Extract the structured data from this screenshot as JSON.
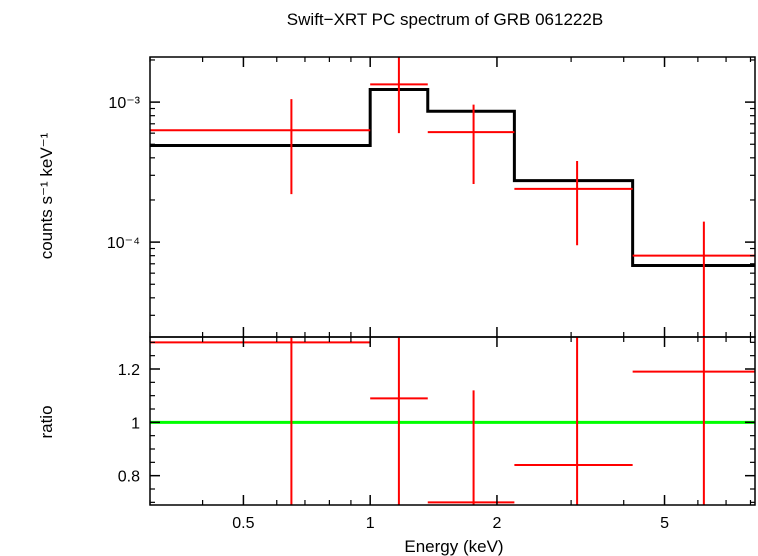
{
  "chart_data": {
    "title": "Swift−XRT PC spectrum of GRB 061222B",
    "xlabel": "Energy (keV)",
    "xscale": "log",
    "xlim": [
      0.3,
      8.2
    ],
    "xticks_major": [
      {
        "value": 0.5,
        "label": "0.5"
      },
      {
        "value": 1,
        "label": "1"
      },
      {
        "value": 2,
        "label": "2"
      },
      {
        "value": 5,
        "label": "5"
      }
    ],
    "xticks_minor": [
      0.3,
      0.4,
      0.6,
      0.7,
      0.8,
      0.9,
      3,
      4,
      6,
      7,
      8
    ],
    "panels": [
      {
        "id": "spectrum",
        "type": "step-with-errorbars",
        "ylabel": "counts s⁻¹ keV⁻¹",
        "yscale": "log",
        "ylim": [
          2.1e-05,
          0.0021
        ],
        "yticks_major": [
          {
            "value": 0.001,
            "label": "10⁻³"
          },
          {
            "value": 0.0001,
            "label": "10⁻⁴"
          }
        ],
        "yticks_minor": [
          3e-05,
          4e-05,
          5e-05,
          6e-05,
          7e-05,
          8e-05,
          9e-05,
          0.0002,
          0.0003,
          0.0004,
          0.0005,
          0.0006,
          0.0007,
          0.0008,
          0.0009,
          0.002
        ],
        "data_series": {
          "color": "#ff0000",
          "points": [
            {
              "x": 0.65,
              "xlo": 0.3,
              "xhi": 1.0,
              "y": 0.00063,
              "ylo": 0.00022,
              "yhi": 0.00105
            },
            {
              "x": 1.17,
              "xlo": 1.0,
              "xhi": 1.37,
              "y": 0.00134,
              "ylo": 0.0006,
              "yhi": 0.0021
            },
            {
              "x": 1.76,
              "xlo": 1.37,
              "xhi": 2.2,
              "y": 0.00061,
              "ylo": 0.00026,
              "yhi": 0.00096
            },
            {
              "x": 3.1,
              "xlo": 2.2,
              "xhi": 4.2,
              "y": 0.00024,
              "ylo": 9.5e-05,
              "yhi": 0.00038
            },
            {
              "x": 6.2,
              "xlo": 4.2,
              "xhi": 8.2,
              "y": 8e-05,
              "ylo": 2.1e-05,
              "yhi": 0.00014
            }
          ]
        },
        "model_series": {
          "color": "#000000",
          "steps": [
            {
              "xlo": 0.3,
              "xhi": 1.0,
              "y": 0.00049
            },
            {
              "xlo": 1.0,
              "xhi": 1.37,
              "y": 0.00123
            },
            {
              "xlo": 1.37,
              "xhi": 2.2,
              "y": 0.00086
            },
            {
              "xlo": 2.2,
              "xhi": 4.2,
              "y": 0.000275
            },
            {
              "xlo": 4.2,
              "xhi": 8.2,
              "y": 6.8e-05
            }
          ]
        }
      },
      {
        "id": "ratio",
        "type": "errorbars-with-reference",
        "ylabel": "ratio",
        "yscale": "linear",
        "ylim": [
          0.69,
          1.32
        ],
        "yticks_major": [
          {
            "value": 0.8,
            "label": "0.8"
          },
          {
            "value": 1,
            "label": "1"
          },
          {
            "value": 1.2,
            "label": "1.2"
          }
        ],
        "yticks_minor": [
          0.7,
          0.75,
          0.85,
          0.9,
          0.95,
          1.05,
          1.1,
          1.15,
          1.25,
          1.3
        ],
        "reference": {
          "y": 1,
          "color": "#00ff00"
        },
        "data_series": {
          "color": "#ff0000",
          "points": [
            {
              "x": 0.65,
              "xlo": 0.3,
              "xhi": 1.0,
              "y": 1.3,
              "ylo": 0.69,
              "yhi": 1.32
            },
            {
              "x": 1.17,
              "xlo": 1.0,
              "xhi": 1.37,
              "y": 1.09,
              "ylo": 0.69,
              "yhi": 1.32
            },
            {
              "x": 1.76,
              "xlo": 1.37,
              "xhi": 2.2,
              "y": 0.7,
              "ylo": 0.69,
              "yhi": 1.12
            },
            {
              "x": 3.1,
              "xlo": 2.2,
              "xhi": 4.2,
              "y": 0.84,
              "ylo": 0.69,
              "yhi": 1.32
            },
            {
              "x": 6.2,
              "xlo": 4.2,
              "xhi": 8.2,
              "y": 1.19,
              "ylo": 0.69,
              "yhi": 1.32
            }
          ]
        }
      }
    ]
  }
}
